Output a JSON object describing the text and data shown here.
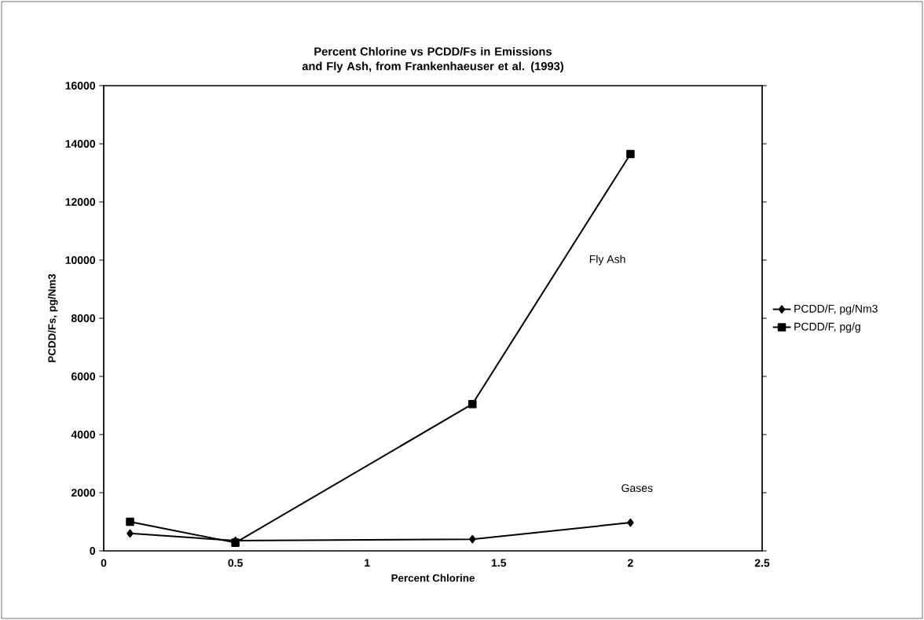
{
  "chart_data": {
    "type": "line",
    "title": "Percent Chlorine vs PCDD/Fs in Emissions and Fly Ash, from Frankenhaeuser et al. (1993)",
    "xlabel": "Percent Chlorine",
    "ylabel": "PCDD/Fs, pg/Nm3",
    "x": [
      0.1,
      0.5,
      1.4,
      2
    ],
    "series": [
      {
        "name": "PCDD/F, pg/Nm3",
        "color": "#000000",
        "marker": "diamond",
        "values": [
          600,
          350,
          400,
          970
        ]
      },
      {
        "name": "PCDD/F, pg/g",
        "color": "#000000",
        "marker": "square",
        "values": [
          1000,
          280,
          5050,
          13650
        ]
      }
    ],
    "annotations": [
      "Fly Ash",
      "Gases"
    ],
    "xlim": [
      0,
      2.5
    ],
    "xticks": [
      0,
      0.5,
      1,
      1.5,
      2,
      2.5
    ],
    "ylim": [
      0,
      16000
    ],
    "yticks": [
      0,
      2000,
      4000,
      6000,
      8000,
      10000,
      12000,
      14000,
      16000
    ],
    "grid": false,
    "legend": "right",
    "line_style": "solid"
  }
}
